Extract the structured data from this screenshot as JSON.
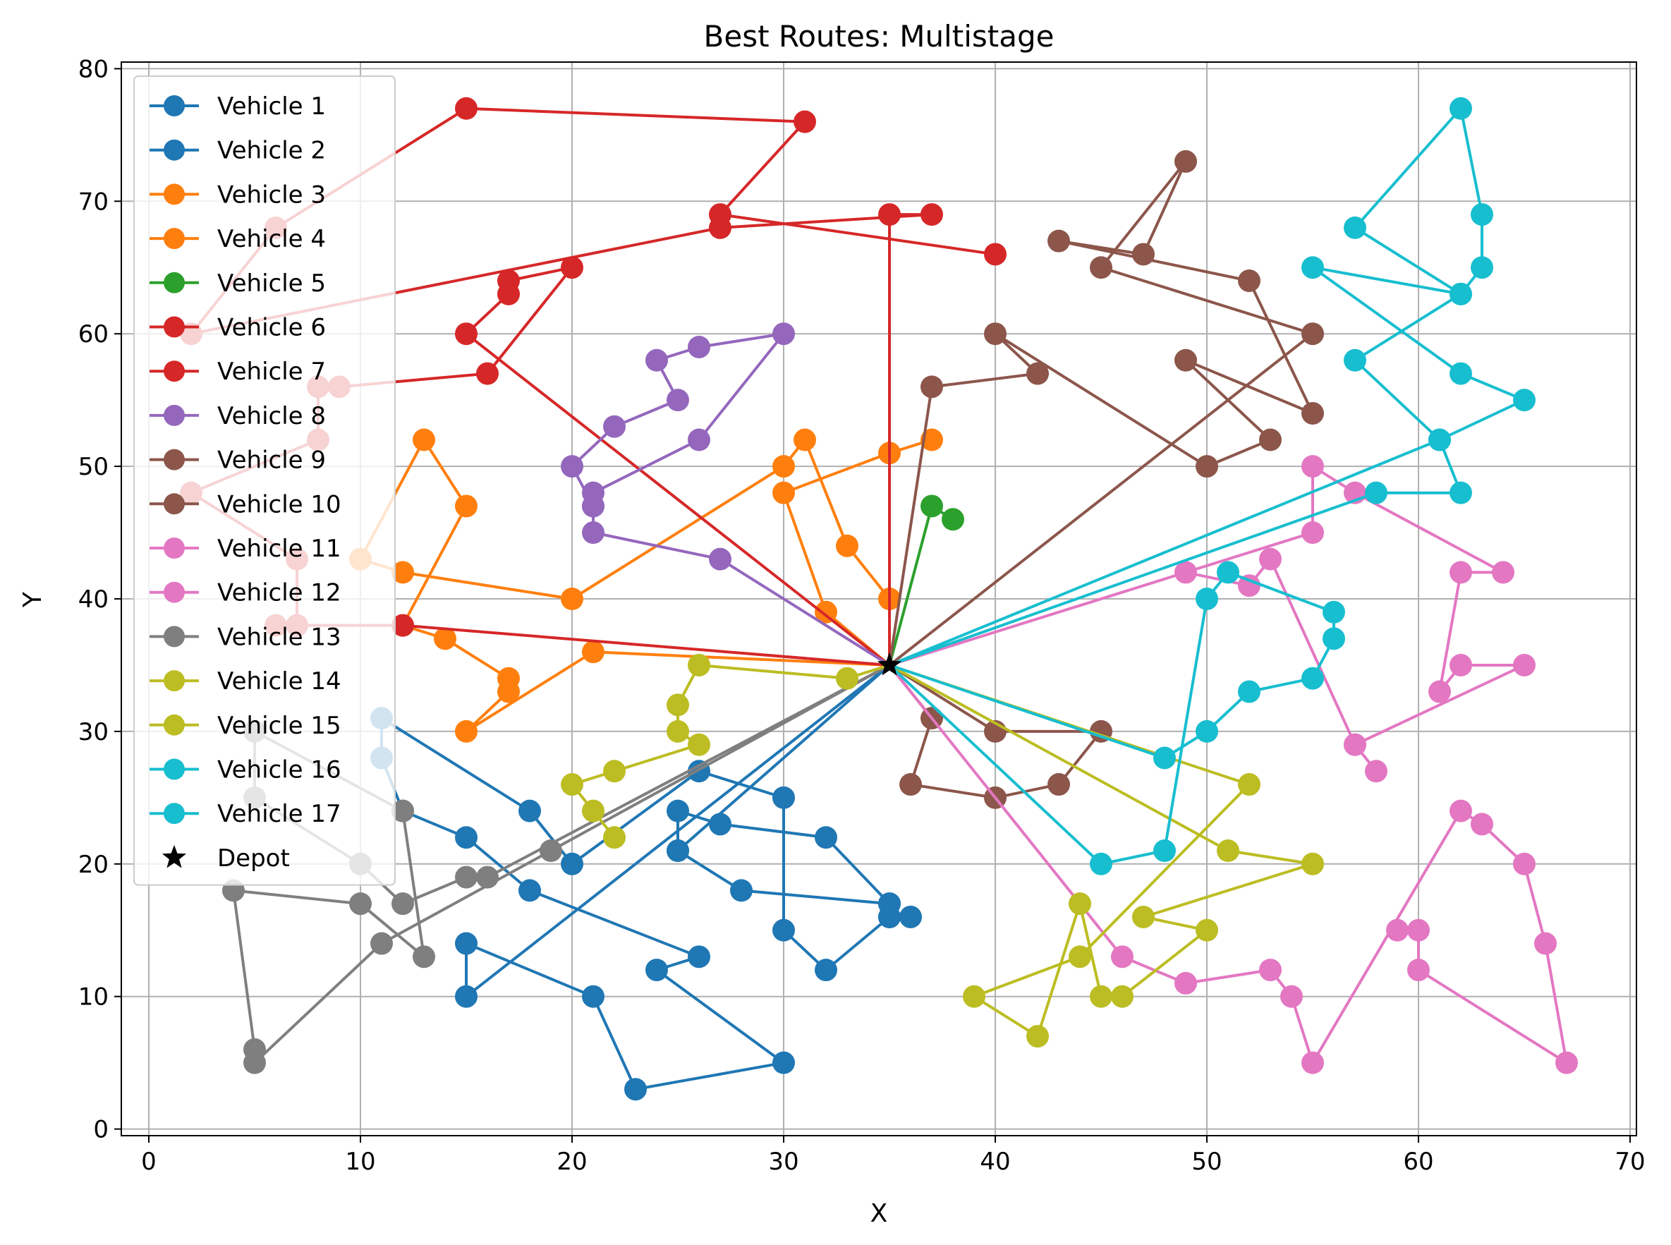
{
  "chart_data": {
    "type": "line",
    "title": "Best Routes: Multistage",
    "xlabel": "X",
    "ylabel": "Y",
    "xlim": [
      -1.3,
      70.3
    ],
    "ylim": [
      -0.5,
      80.5
    ],
    "xticks": [
      0,
      10,
      20,
      30,
      40,
      50,
      60,
      70
    ],
    "yticks": [
      0,
      10,
      20,
      30,
      40,
      50,
      60,
      70,
      80
    ],
    "grid": true,
    "legend_position": "upper-left",
    "depot": {
      "name": "Depot",
      "x": 35,
      "y": 35,
      "color": "#000000"
    },
    "series": [
      {
        "name": "Vehicle 1",
        "color": "#1f77b4",
        "points": [
          [
            35,
            35
          ],
          [
            25,
            21
          ],
          [
            25,
            24
          ],
          [
            27,
            23
          ],
          [
            32,
            22
          ],
          [
            35,
            17
          ],
          [
            35,
            16
          ],
          [
            36,
            16
          ]
        ]
      },
      {
        "name": "Vehicle 2",
        "color": "#1f77b4",
        "points": [
          [
            35,
            35
          ],
          [
            15,
            10
          ],
          [
            15,
            14
          ],
          [
            21,
            10
          ],
          [
            23,
            3
          ],
          [
            30,
            5
          ],
          [
            24,
            12
          ],
          [
            26,
            13
          ],
          [
            18,
            18
          ],
          [
            15,
            22
          ],
          [
            12,
            24
          ],
          [
            11,
            28
          ],
          [
            11,
            31
          ],
          [
            18,
            24
          ],
          [
            20,
            20
          ],
          [
            26,
            27
          ],
          [
            30,
            25
          ],
          [
            30,
            15
          ],
          [
            32,
            12
          ],
          [
            35,
            16
          ],
          [
            35,
            17
          ],
          [
            28,
            18
          ],
          [
            25,
            21
          ]
        ]
      },
      {
        "name": "Vehicle 3",
        "color": "#ff7f0e",
        "points": [
          [
            35,
            35
          ],
          [
            32,
            39
          ],
          [
            30,
            48
          ],
          [
            35,
            51
          ],
          [
            37,
            52
          ]
        ]
      },
      {
        "name": "Vehicle 4",
        "color": "#ff7f0e",
        "points": [
          [
            35,
            35
          ],
          [
            35,
            40
          ],
          [
            33,
            44
          ],
          [
            31,
            52
          ],
          [
            30,
            50
          ],
          [
            20,
            40
          ],
          [
            12,
            42
          ],
          [
            10,
            43
          ],
          [
            13,
            52
          ],
          [
            15,
            47
          ],
          [
            12,
            38
          ],
          [
            14,
            37
          ],
          [
            17,
            34
          ],
          [
            17,
            33
          ],
          [
            15,
            30
          ],
          [
            21,
            36
          ],
          [
            35,
            35
          ]
        ]
      },
      {
        "name": "Vehicle 5",
        "color": "#2ca02c",
        "points": [
          [
            35,
            35
          ],
          [
            37,
            47
          ],
          [
            38,
            46
          ]
        ]
      },
      {
        "name": "Vehicle 6",
        "color": "#d62728",
        "points": [
          [
            35,
            35
          ],
          [
            35,
            69
          ],
          [
            37,
            69
          ],
          [
            27,
            68
          ],
          [
            2,
            60
          ],
          [
            6,
            68
          ],
          [
            15,
            77
          ],
          [
            31,
            76
          ],
          [
            27,
            69
          ],
          [
            40,
            66
          ]
        ]
      },
      {
        "name": "Vehicle 7",
        "color": "#d62728",
        "points": [
          [
            35,
            35
          ],
          [
            15,
            60
          ],
          [
            17,
            63
          ],
          [
            17,
            64
          ],
          [
            20,
            65
          ],
          [
            16,
            57
          ],
          [
            9,
            56
          ],
          [
            8,
            56
          ],
          [
            8,
            52
          ],
          [
            2,
            48
          ],
          [
            7,
            43
          ],
          [
            7,
            38
          ],
          [
            6,
            38
          ],
          [
            12,
            38
          ],
          [
            35,
            35
          ]
        ]
      },
      {
        "name": "Vehicle 8",
        "color": "#9467bd",
        "points": [
          [
            35,
            35
          ],
          [
            27,
            43
          ],
          [
            21,
            45
          ],
          [
            21,
            47
          ],
          [
            20,
            50
          ],
          [
            22,
            53
          ],
          [
            25,
            55
          ],
          [
            24,
            58
          ],
          [
            26,
            59
          ],
          [
            30,
            60
          ],
          [
            26,
            52
          ],
          [
            21,
            48
          ],
          [
            21,
            47
          ]
        ]
      },
      {
        "name": "Vehicle 9",
        "color": "#8c564b",
        "points": [
          [
            35,
            35
          ],
          [
            37,
            56
          ],
          [
            42,
            57
          ],
          [
            40,
            60
          ],
          [
            50,
            50
          ],
          [
            53,
            52
          ],
          [
            49,
            58
          ],
          [
            55,
            54
          ],
          [
            52,
            64
          ],
          [
            43,
            67
          ],
          [
            47,
            66
          ],
          [
            49,
            73
          ],
          [
            45,
            65
          ],
          [
            55,
            60
          ],
          [
            35,
            35
          ]
        ]
      },
      {
        "name": "Vehicle 10",
        "color": "#8c564b",
        "points": [
          [
            35,
            35
          ],
          [
            37,
            31
          ],
          [
            36,
            26
          ],
          [
            40,
            25
          ],
          [
            43,
            26
          ],
          [
            45,
            30
          ],
          [
            40,
            30
          ],
          [
            35,
            35
          ]
        ]
      },
      {
        "name": "Vehicle 11",
        "color": "#e377c2",
        "points": [
          [
            35,
            35
          ],
          [
            49,
            42
          ],
          [
            52,
            41
          ],
          [
            53,
            43
          ],
          [
            57,
            29
          ],
          [
            58,
            27
          ],
          [
            57,
            29
          ],
          [
            65,
            35
          ],
          [
            62,
            35
          ],
          [
            61,
            33
          ],
          [
            62,
            42
          ],
          [
            64,
            42
          ],
          [
            57,
            48
          ],
          [
            55,
            50
          ],
          [
            55,
            45
          ],
          [
            35,
            35
          ]
        ]
      },
      {
        "name": "Vehicle 12",
        "color": "#e377c2",
        "points": [
          [
            35,
            35
          ],
          [
            46,
            13
          ],
          [
            49,
            11
          ],
          [
            53,
            12
          ],
          [
            54,
            10
          ],
          [
            55,
            5
          ],
          [
            62,
            24
          ],
          [
            63,
            23
          ],
          [
            65,
            20
          ],
          [
            66,
            14
          ],
          [
            67,
            5
          ],
          [
            60,
            12
          ],
          [
            60,
            15
          ],
          [
            59,
            15
          ]
        ]
      },
      {
        "name": "Vehicle 13",
        "color": "#7f7f7f",
        "points": [
          [
            35,
            35
          ],
          [
            16,
            19
          ],
          [
            15,
            19
          ],
          [
            12,
            17
          ],
          [
            10,
            20
          ],
          [
            5,
            25
          ],
          [
            5,
            30
          ],
          [
            12,
            24
          ],
          [
            13,
            13
          ],
          [
            10,
            17
          ],
          [
            4,
            18
          ],
          [
            5,
            6
          ],
          [
            5,
            5
          ],
          [
            11,
            14
          ],
          [
            19,
            21
          ],
          [
            35,
            35
          ]
        ]
      },
      {
        "name": "Vehicle 14",
        "color": "#bcbd22",
        "points": [
          [
            35,
            35
          ],
          [
            33,
            34
          ],
          [
            26,
            35
          ],
          [
            25,
            32
          ],
          [
            25,
            30
          ],
          [
            26,
            29
          ],
          [
            22,
            27
          ],
          [
            20,
            26
          ],
          [
            21,
            24
          ],
          [
            22,
            22
          ]
        ]
      },
      {
        "name": "Vehicle 15",
        "color": "#bcbd22",
        "points": [
          [
            35,
            35
          ],
          [
            52,
            26
          ],
          [
            44,
            13
          ],
          [
            39,
            10
          ],
          [
            42,
            7
          ],
          [
            44,
            17
          ],
          [
            45,
            10
          ],
          [
            46,
            10
          ],
          [
            50,
            15
          ],
          [
            47,
            16
          ],
          [
            55,
            20
          ],
          [
            51,
            21
          ],
          [
            35,
            35
          ]
        ]
      },
      {
        "name": "Vehicle 16",
        "color": "#17becf",
        "points": [
          [
            35,
            35
          ],
          [
            45,
            20
          ],
          [
            48,
            21
          ],
          [
            50,
            40
          ],
          [
            51,
            42
          ],
          [
            56,
            39
          ],
          [
            56,
            37
          ],
          [
            55,
            34
          ],
          [
            52,
            33
          ],
          [
            50,
            30
          ],
          [
            48,
            28
          ],
          [
            35,
            35
          ]
        ]
      },
      {
        "name": "Vehicle 17",
        "color": "#17becf",
        "points": [
          [
            35,
            35
          ],
          [
            58,
            48
          ],
          [
            62,
            48
          ],
          [
            61,
            52
          ],
          [
            65,
            55
          ],
          [
            62,
            57
          ],
          [
            55,
            65
          ],
          [
            62,
            63
          ],
          [
            63,
            65
          ],
          [
            63,
            69
          ],
          [
            62,
            77
          ],
          [
            57,
            68
          ],
          [
            62,
            63
          ],
          [
            57,
            58
          ],
          [
            61,
            52
          ],
          [
            35,
            35
          ]
        ]
      }
    ]
  }
}
